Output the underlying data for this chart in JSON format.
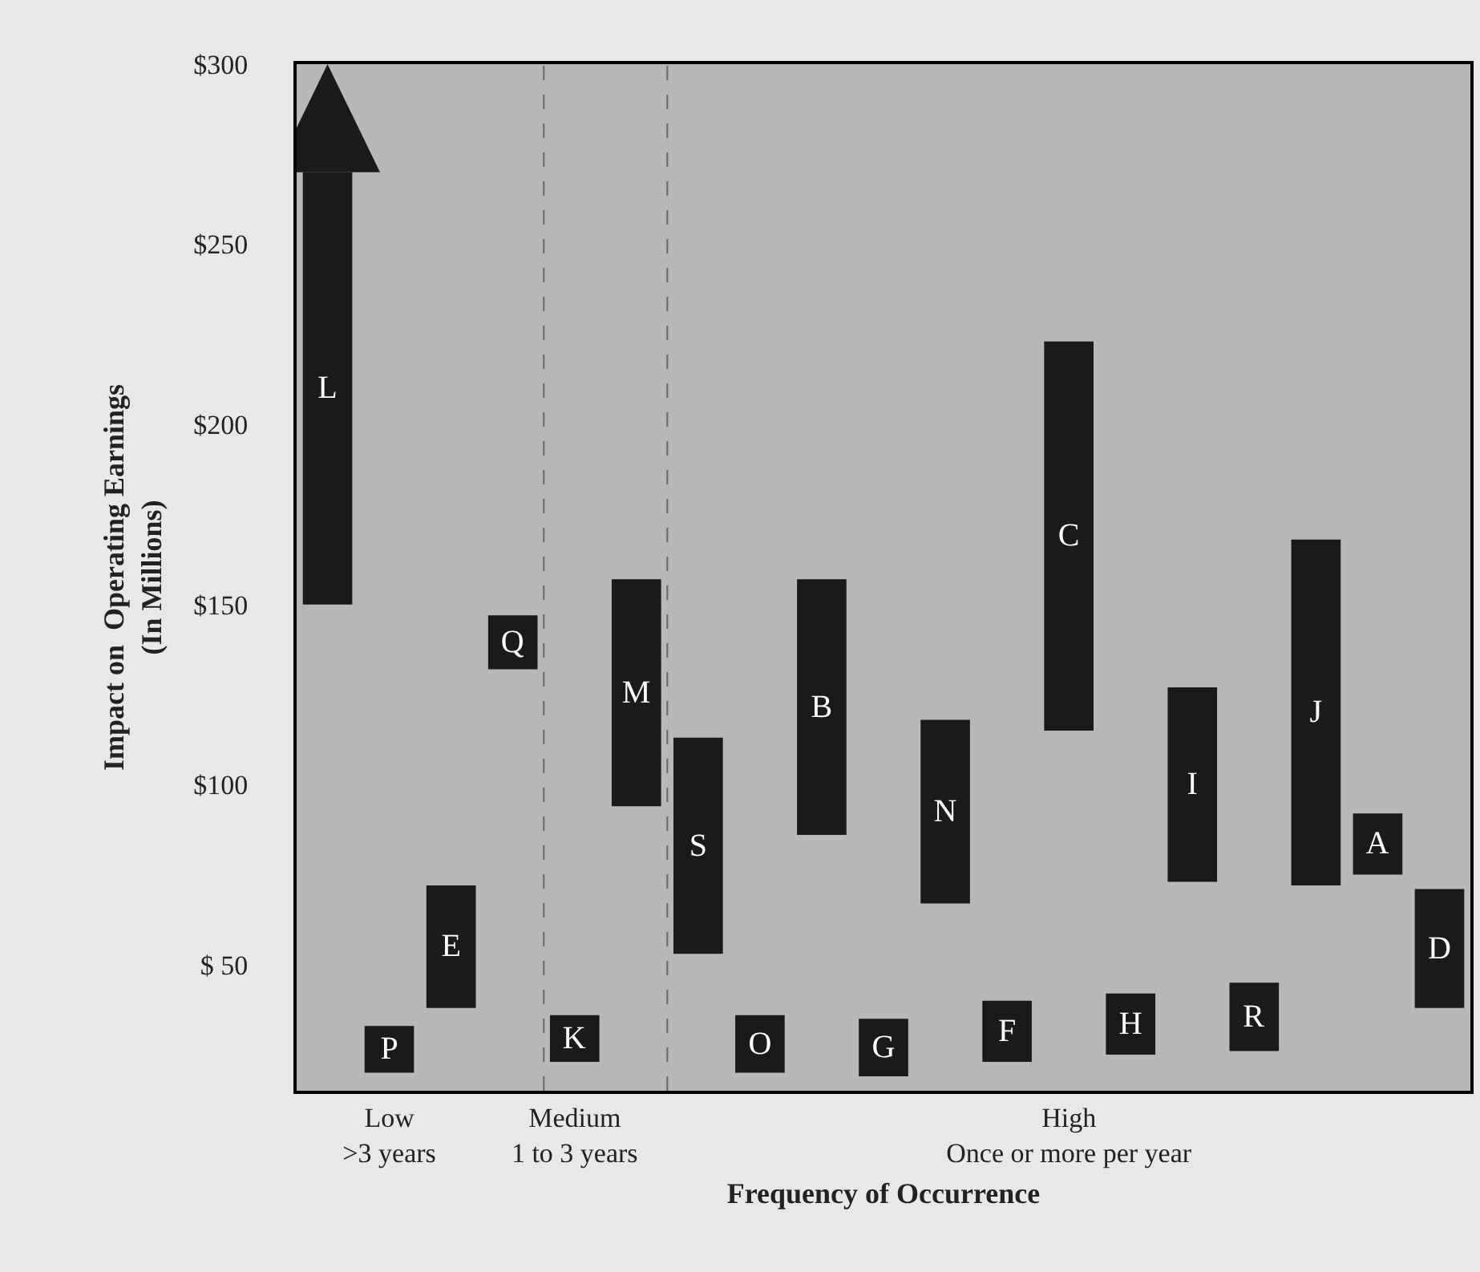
{
  "chart_data": {
    "type": "bar",
    "xlabel": "Frequency of Occurrence",
    "ylabel": "Impact on  Operating Earnings\n(In Millions)",
    "categories": [
      null,
      "Low\n>3 years",
      null,
      null,
      "Medium\n1 to 3 years",
      null,
      null,
      null,
      null,
      null,
      null,
      null,
      "High\nOnce or more per year",
      null,
      null,
      null,
      null,
      null,
      null
    ],
    "base": [
      150,
      20,
      38,
      132,
      23,
      94,
      53,
      20,
      86,
      19,
      67,
      23,
      115,
      25,
      73,
      26,
      72,
      75,
      38
    ],
    "values": [
      120,
      13,
      34,
      15,
      13,
      63,
      60,
      16,
      71,
      16,
      51,
      17,
      108,
      17,
      54,
      19,
      96,
      17,
      33
    ],
    "value_labels": [
      "L",
      "P",
      "E",
      "Q",
      "K",
      "M",
      "S",
      "O",
      "B",
      "G",
      "N",
      "F",
      "C",
      "H",
      "I",
      "R",
      "J",
      "A",
      "D"
    ],
    "color": "#1a1a1a",
    "ylim": [
      15,
      300
    ],
    "yticks": [
      {
        "value": 50,
        "label": "$ 50"
      },
      {
        "value": 100,
        "label": "$100"
      },
      {
        "value": 150,
        "label": "$150"
      },
      {
        "value": 200,
        "label": "$200"
      },
      {
        "value": 250,
        "label": "$250"
      },
      {
        "value": 300,
        "label": "$300"
      }
    ],
    "grid": false,
    "legend": false
  }
}
